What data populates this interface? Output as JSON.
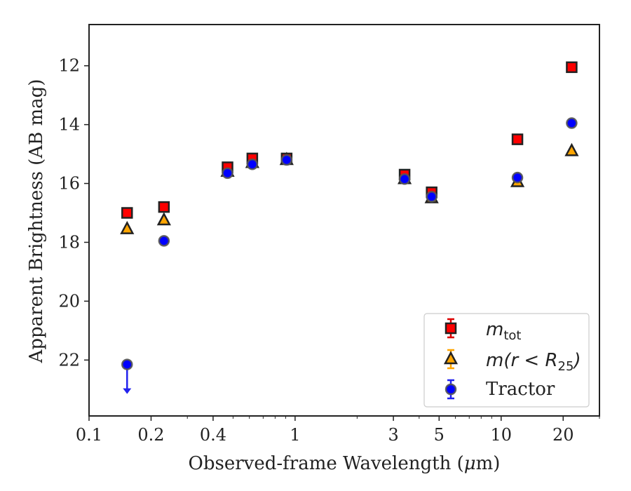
{
  "chart_data": {
    "type": "scatter",
    "xlabel_text": "Observed-frame Wavelength (",
    "xlabel_mu": "μ",
    "xlabel_end": "m)",
    "ylabel": "Apparent Brightness (AB mag)",
    "xscale": "log",
    "xlim": [
      0.1,
      30
    ],
    "ylim": [
      23.9,
      10.6
    ],
    "y_inverted": true,
    "grid": false,
    "legend_position": "lower-right",
    "x_ticks": [
      {
        "value": 0.1,
        "label": "0.1"
      },
      {
        "value": 0.2,
        "label": "0.2"
      },
      {
        "value": 0.4,
        "label": "0.4"
      },
      {
        "value": 1,
        "label": "1"
      },
      {
        "value": 3,
        "label": "3"
      },
      {
        "value": 5,
        "label": "5"
      },
      {
        "value": 10,
        "label": "10"
      },
      {
        "value": 20,
        "label": "20"
      }
    ],
    "y_ticks": [
      12,
      14,
      16,
      18,
      20,
      22
    ],
    "series": [
      {
        "name": "m_tot",
        "legend_main": "m",
        "legend_sub": "tot",
        "marker": "square",
        "color": "#ff0000",
        "edge": "#222222",
        "x": [
          0.153,
          0.231,
          0.47,
          0.62,
          0.91,
          3.4,
          4.6,
          12.0,
          22.0
        ],
        "y": [
          17.0,
          16.8,
          15.45,
          15.15,
          15.15,
          15.7,
          16.3,
          14.5,
          12.05
        ]
      },
      {
        "name": "m(r < R25)",
        "legend_main": "m(r < R",
        "legend_sub": "25",
        "legend_close": ")",
        "marker": "triangle",
        "color": "#ffa500",
        "edge": "#222222",
        "x": [
          0.153,
          0.231,
          0.47,
          0.62,
          0.91,
          3.4,
          4.6,
          12.0,
          22.0
        ],
        "y": [
          17.55,
          17.25,
          15.6,
          15.3,
          15.2,
          15.85,
          16.5,
          15.95,
          14.9
        ]
      },
      {
        "name": "Tractor",
        "legend_label": "Tractor",
        "marker": "circle",
        "color": "#0000ff",
        "edge": "#555555",
        "x": [
          0.153,
          0.231,
          0.47,
          0.62,
          0.91,
          3.4,
          4.6,
          12.0,
          22.0
        ],
        "y": [
          22.15,
          17.95,
          15.65,
          15.35,
          15.2,
          15.85,
          16.45,
          15.8,
          13.95
        ],
        "upper_limit_index": 0
      }
    ]
  }
}
